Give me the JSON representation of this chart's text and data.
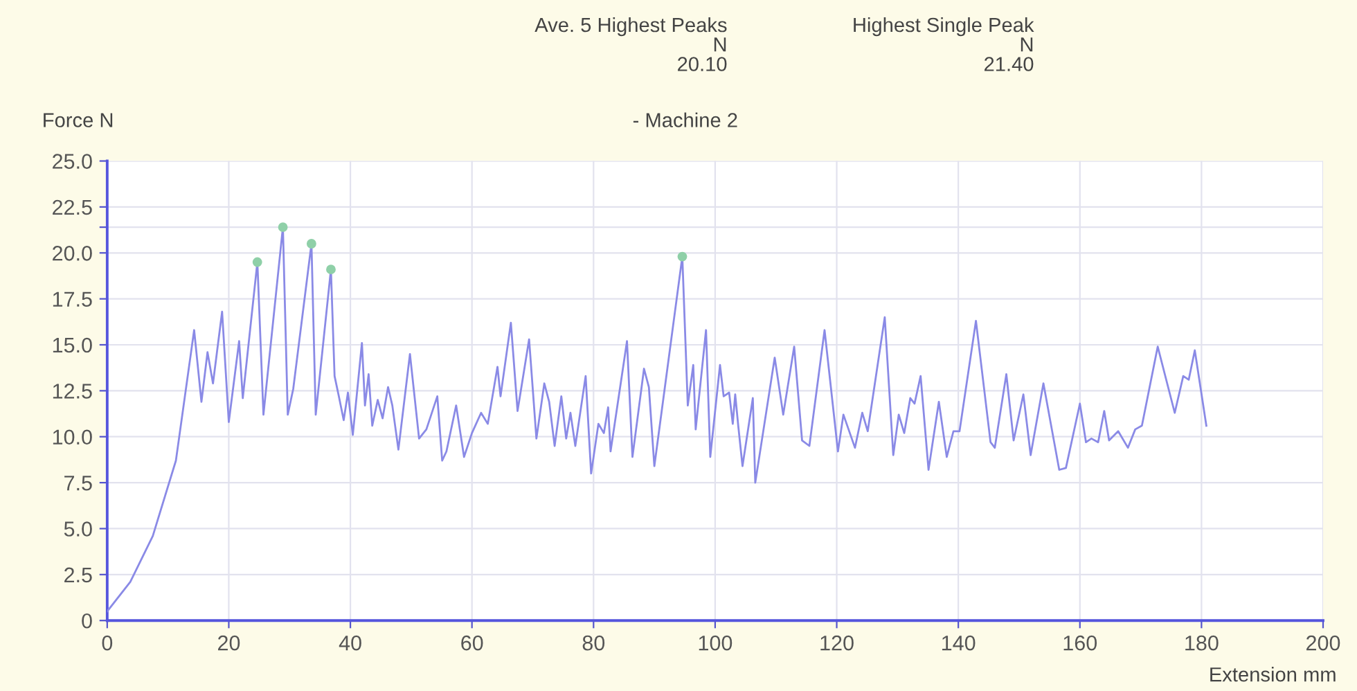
{
  "chart_data": {
    "type": "line",
    "title": "- Machine 2",
    "xlabel": "Extension mm",
    "ylabel": "Force N",
    "annotations": [
      "Ave. 5 Highest Peaks\nN\n20.10",
      "Highest Single Peak\nN\n21.40"
    ],
    "xlim": [
      0,
      200
    ],
    "ylim": [
      0,
      25
    ],
    "xticks": [
      0,
      20,
      40,
      60,
      80,
      100,
      120,
      140,
      160,
      180,
      200
    ],
    "yticks": [
      0,
      2.5,
      {
        "value": 5,
        "label": "5.0"
      },
      7.5,
      {
        "value": 10,
        "label": "10.0"
      },
      12.5,
      {
        "value": 15,
        "label": "15.0"
      },
      17.5,
      {
        "value": 20,
        "label": "20.0"
      },
      {
        "value": 21.4,
        "label": null
      },
      22.5,
      {
        "value": 25,
        "label": "25.0"
      }
    ],
    "grid": true,
    "legend": false,
    "marker": "none",
    "line_style": "solid",
    "series": [
      {
        "color": "#8a8ae6",
        "x": [
          0,
          3.8,
          7.5,
          11.3,
          14.3,
          15.5,
          16.5,
          17.4,
          18.9,
          20,
          21.7,
          22.3,
          24.7,
          25.7,
          28.9,
          29.7,
          30.6,
          33.6,
          34.3,
          36.8,
          37.4,
          38.1,
          38.9,
          39.6,
          40.4,
          41.9,
          42.4,
          43,
          43.6,
          44.5,
          45.3,
          46.2,
          46.9,
          47.9,
          49.8,
          51.3,
          52.5,
          54.3,
          55.1,
          55.8,
          57.4,
          58.7,
          60,
          61.5,
          62.6,
          64.2,
          64.7,
          66.4,
          67.5,
          69.4,
          70.6,
          71.9,
          72.7,
          73.6,
          74.7,
          75.5,
          76.2,
          77,
          78.7,
          79.6,
          80.8,
          81.7,
          82.4,
          82.8,
          85.5,
          86.4,
          88.3,
          89.1,
          90,
          94.6,
          95.5,
          96.4,
          96.8,
          98.5,
          99.2,
          100.8,
          101.4,
          102.3,
          102.9,
          103.3,
          103.8,
          104.5,
          106.2,
          106.6,
          109.8,
          111.2,
          113,
          114.3,
          115.5,
          118,
          120.2,
          121.1,
          123,
          124.2,
          125.1,
          127.9,
          129.3,
          130.2,
          131.1,
          132.1,
          132.8,
          133.8,
          135.1,
          136.8,
          138.1,
          139.2,
          140.2,
          142.9,
          145.3,
          146,
          147.9,
          149.1,
          150.7,
          151.9,
          154,
          156.6,
          157.7,
          160,
          161,
          161.9,
          163,
          164,
          164.8,
          166.3,
          167.9,
          169.1,
          170.2,
          172.8,
          175.6,
          177,
          177.9,
          178.9,
          180.8
        ],
        "values": [
          0.5,
          2.1,
          4.6,
          8.7,
          15.8,
          11.9,
          14.6,
          12.9,
          16.8,
          10.8,
          15.2,
          12.1,
          19.5,
          11.2,
          21.4,
          11.2,
          12.6,
          20.5,
          11.2,
          19.1,
          13.3,
          12.2,
          10.9,
          12.4,
          10.1,
          15.1,
          11.7,
          13.4,
          10.6,
          12,
          11,
          12.7,
          11.7,
          9.3,
          14.5,
          9.9,
          10.4,
          12.2,
          8.7,
          9.2,
          11.7,
          8.9,
          10.2,
          11.3,
          10.7,
          13.8,
          12.2,
          16.2,
          11.4,
          15.3,
          9.9,
          12.9,
          11.9,
          9.5,
          12.2,
          9.9,
          11.3,
          9.5,
          13.3,
          8,
          10.7,
          10.2,
          11.6,
          9.2,
          15.2,
          8.9,
          13.7,
          12.7,
          8.4,
          19.8,
          11.7,
          13.9,
          10.4,
          15.8,
          8.9,
          13.9,
          12.2,
          12.4,
          10.7,
          12.3,
          10.6,
          8.4,
          12.1,
          7.5,
          14.3,
          11.2,
          14.9,
          9.8,
          9.5,
          15.8,
          9.2,
          11.2,
          9.4,
          11.3,
          10.3,
          16.5,
          9,
          11.2,
          10.2,
          12.1,
          11.8,
          13.3,
          8.2,
          11.9,
          8.9,
          10.3,
          10.3,
          16.3,
          9.7,
          9.4,
          13.4,
          9.8,
          12.3,
          9,
          12.9,
          8.2,
          8.3,
          11.8,
          9.7,
          9.9,
          9.7,
          11.4,
          9.8,
          10.3,
          9.4,
          10.4,
          10.6,
          14.9,
          11.3,
          13.3,
          13.1,
          14.7,
          10.6
        ]
      },
      {
        "type": "scatter",
        "color": "#8fd0a8",
        "marker": "circle",
        "x": [
          24.7,
          28.9,
          33.6,
          36.8,
          94.6
        ],
        "values": [
          19.5,
          21.4,
          20.5,
          19.1,
          19.8
        ]
      }
    ]
  }
}
